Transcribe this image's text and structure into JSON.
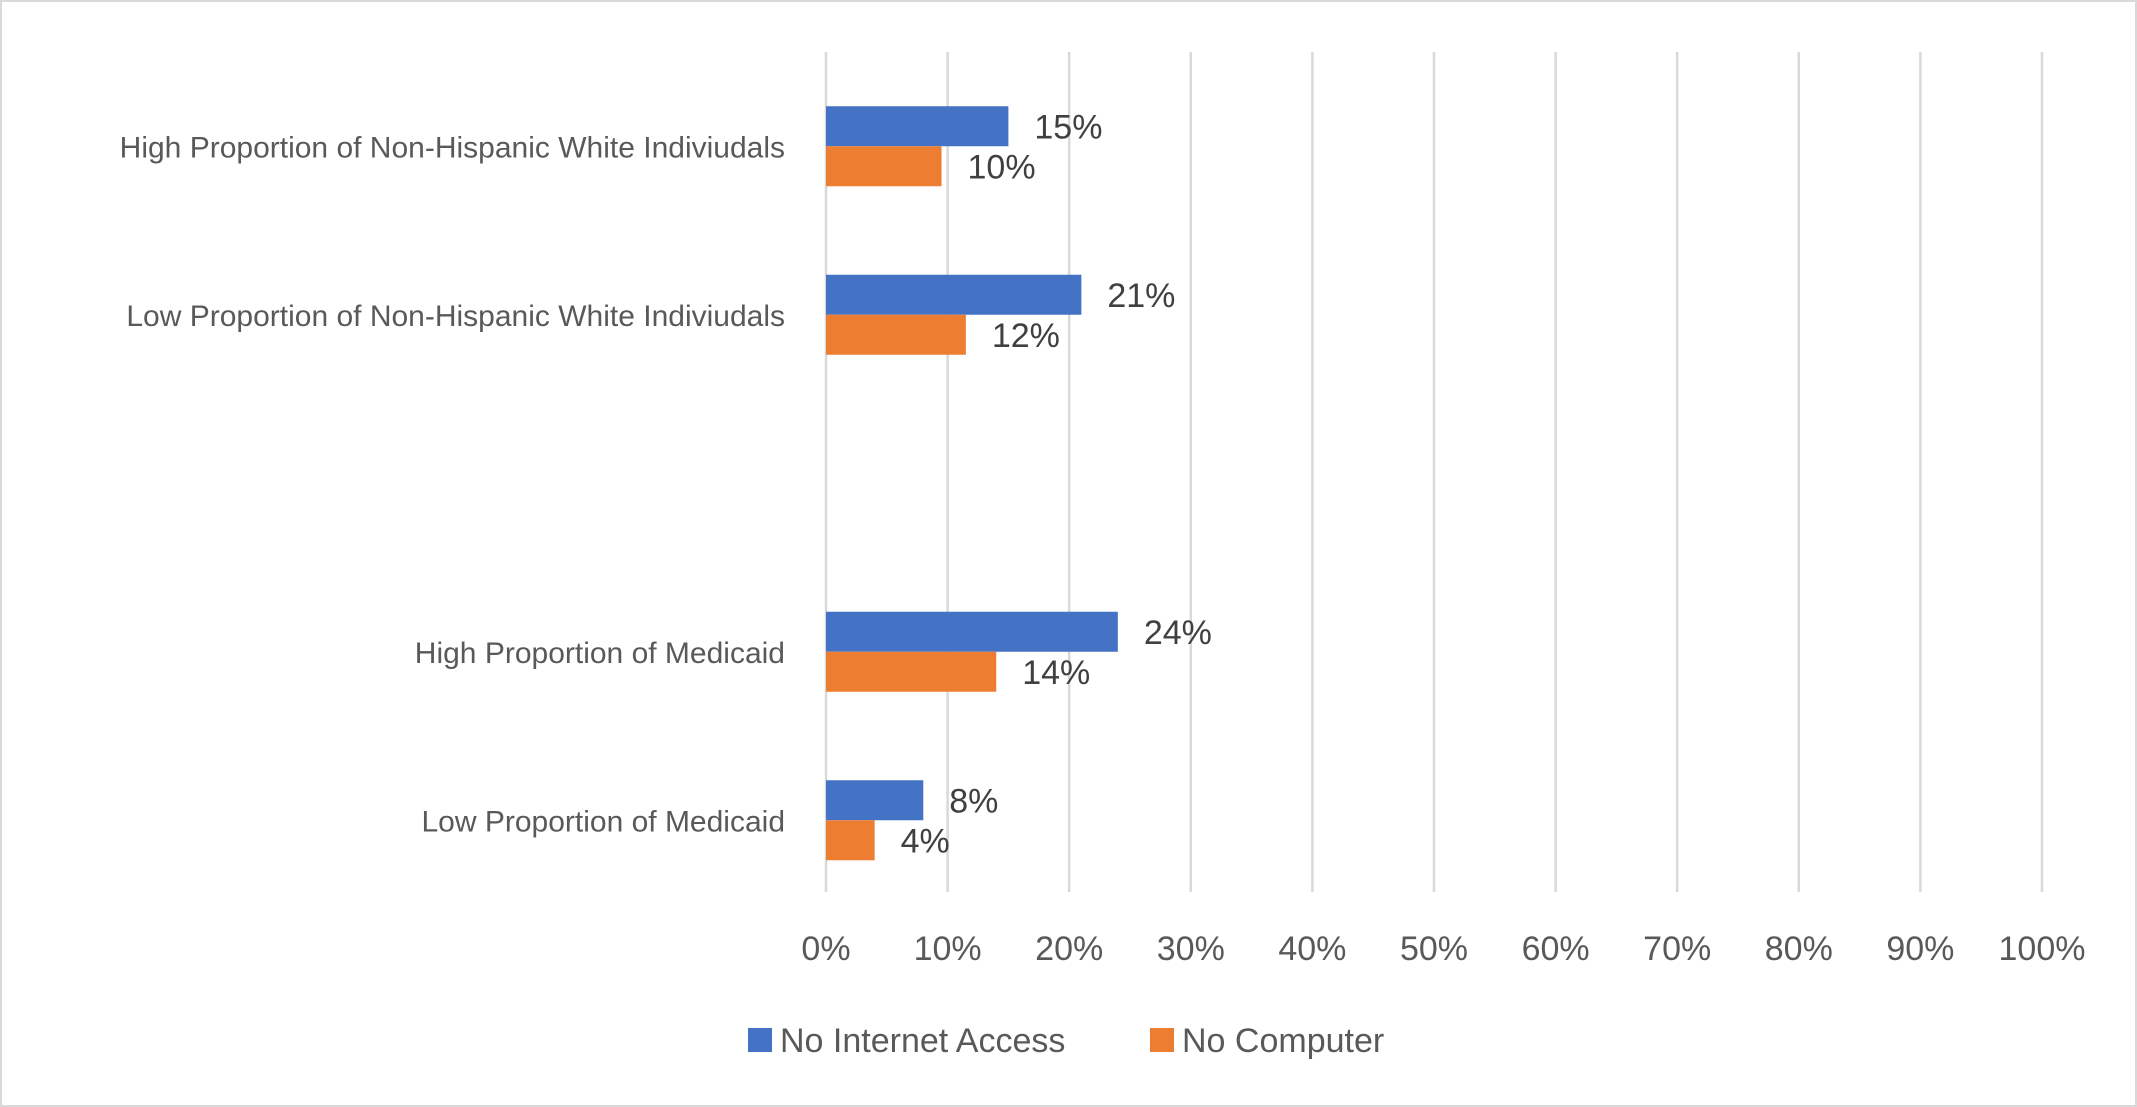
{
  "chart_data": {
    "type": "bar",
    "orientation": "horizontal",
    "categories": [
      "High Proportion of Non-Hispanic White Indiviudals",
      "Low Proportion of Non-Hispanic White Indiviudals",
      "",
      "High Proportion of Medicaid",
      "Low Proportion of Medicaid"
    ],
    "series": [
      {
        "name": "No Internet Access",
        "color": "#4472C4",
        "values": [
          15,
          21,
          null,
          24,
          8
        ],
        "labels": [
          "15%",
          "21%",
          "",
          "24%",
          "8%"
        ]
      },
      {
        "name": "No Computer",
        "color": "#ED7D31",
        "values": [
          9.5,
          11.5,
          null,
          14,
          4
        ],
        "labels": [
          "10%",
          "12%",
          "",
          "14%",
          "4%"
        ]
      }
    ],
    "xlim": [
      0,
      100
    ],
    "x_ticks": [
      0,
      10,
      20,
      30,
      40,
      50,
      60,
      70,
      80,
      90,
      100
    ],
    "x_tick_labels": [
      "0%",
      "10%",
      "20%",
      "30%",
      "40%",
      "50%",
      "60%",
      "70%",
      "80%",
      "90%",
      "100%"
    ],
    "grid": true,
    "gridline_color": "#d9d9d9",
    "legend_position": "bottom",
    "title": "",
    "xlabel": "",
    "ylabel": ""
  }
}
